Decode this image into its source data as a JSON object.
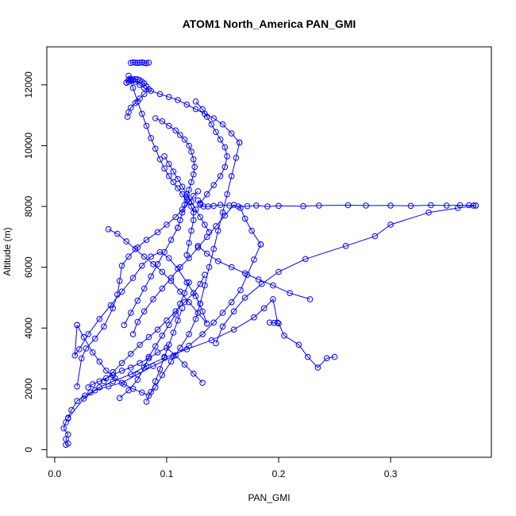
{
  "chart_data": {
    "type": "scatter",
    "title": "ATOM1 North_America PAN_GMI",
    "xlabel": "PAN_GMI",
    "ylabel": "Altitude (m)",
    "xlim": [
      -0.007,
      0.39
    ],
    "ylim": [
      -250,
      13250
    ],
    "x_ticks": [
      0.0,
      0.1,
      0.2,
      0.3
    ],
    "x_tick_labels": [
      "0.0",
      "0.1",
      "0.2",
      "0.3"
    ],
    "y_ticks": [
      0,
      2000,
      4000,
      6000,
      8000,
      10000,
      12000
    ],
    "y_tick_labels": [
      "0",
      "2000",
      "4000",
      "6000",
      "8000",
      "10000",
      "12000"
    ],
    "grid": false,
    "color": "#0000ff",
    "marker": "open-circle",
    "connected": true,
    "series": [
      {
        "x": [
          0.01,
          0.012,
          0.01,
          0.012,
          0.008,
          0.01,
          0.012,
          0.015,
          0.02,
          0.027,
          0.032,
          0.04,
          0.052,
          0.068,
          0.082,
          0.098,
          0.118,
          0.14,
          0.16,
          0.178,
          0.187,
          0.195,
          0.199
        ],
        "y": [
          160,
          200,
          350,
          500,
          700,
          900,
          1050,
          1300,
          1600,
          1780,
          1880,
          2050,
          2250,
          2480,
          2750,
          3020,
          3300,
          3600,
          3950,
          4350,
          4650,
          4950,
          4180
        ]
      },
      {
        "x": [
          0.192,
          0.196,
          0.2,
          0.205,
          0.218,
          0.226,
          0.235,
          0.243,
          0.25
        ],
        "y": [
          4180,
          4170,
          4150,
          3750,
          3450,
          3050,
          2700,
          3010,
          3050
        ]
      },
      {
        "x": [
          0.012,
          0.026,
          0.036,
          0.048,
          0.06,
          0.074,
          0.088,
          0.106,
          0.12,
          0.132,
          0.142,
          0.15,
          0.158,
          0.166,
          0.172,
          0.178,
          0.184
        ],
        "y": [
          1030,
          1680,
          1950,
          2080,
          2200,
          2480,
          2750,
          3080,
          3420,
          3800,
          4180,
          4500,
          4850,
          5250,
          5750,
          6250,
          6750
        ]
      },
      {
        "x": [
          0.184,
          0.176,
          0.17,
          0.166,
          0.16,
          0.152,
          0.144,
          0.136,
          0.128,
          0.12,
          0.112,
          0.104,
          0.096,
          0.088,
          0.08,
          0.074,
          0.07
        ],
        "y": [
          6750,
          7200,
          7600,
          7950,
          8050,
          7700,
          7350,
          7000,
          6650,
          6300,
          6000,
          5650,
          5300,
          4950,
          4550,
          4200,
          3800
        ]
      },
      {
        "x": [
          0.02,
          0.024,
          0.028,
          0.036,
          0.044,
          0.052,
          0.056,
          0.058,
          0.06,
          0.066,
          0.074,
          0.082,
          0.092,
          0.1,
          0.108,
          0.114,
          0.12,
          0.124,
          0.128
        ],
        "y": [
          2080,
          3000,
          3330,
          3650,
          4050,
          4650,
          5100,
          5550,
          6050,
          6350,
          6650,
          6900,
          7150,
          7400,
          7650,
          7900,
          8150,
          8350,
          8500
        ]
      },
      {
        "x": [
          0.128,
          0.13,
          0.133,
          0.137,
          0.142,
          0.148,
          0.156,
          0.164,
          0.172,
          0.18,
          0.19,
          0.2,
          0.222,
          0.236,
          0.262,
          0.278,
          0.3,
          0.318,
          0.336,
          0.35,
          0.362,
          0.37,
          0.374,
          0.376
        ],
        "y": [
          8200,
          8050,
          8000,
          8000,
          8020,
          8050,
          8030,
          8000,
          8010,
          8030,
          8000,
          8020,
          8010,
          8030,
          8040,
          8030,
          8030,
          8020,
          8040,
          8030,
          8040,
          8040,
          8030,
          8030
        ]
      },
      {
        "x": [
          0.376,
          0.36,
          0.334,
          0.3,
          0.286,
          0.26,
          0.224,
          0.2,
          0.185,
          0.17,
          0.16,
          0.15,
          0.144
        ],
        "y": [
          8030,
          7950,
          7800,
          7400,
          7020,
          6700,
          6270,
          5850,
          5450,
          5000,
          4550,
          4050,
          3500
        ]
      },
      {
        "x": [
          0.048,
          0.056,
          0.064,
          0.072,
          0.08,
          0.088,
          0.096,
          0.104,
          0.112,
          0.12,
          0.128,
          0.136
        ],
        "y": [
          7250,
          7100,
          6850,
          6600,
          6350,
          6100,
          5850,
          5550,
          5200,
          4850,
          4500,
          4150
        ]
      },
      {
        "x": [
          0.136,
          0.132,
          0.126,
          0.118,
          0.11,
          0.102,
          0.094,
          0.086,
          0.078,
          0.07,
          0.06,
          0.05,
          0.04,
          0.03,
          0.022,
          0.018,
          0.02
        ],
        "y": [
          4150,
          4550,
          5050,
          5500,
          5950,
          6300,
          6500,
          6350,
          6050,
          5650,
          5200,
          4750,
          4300,
          3800,
          3300,
          3100,
          4100
        ]
      },
      {
        "x": [
          0.02,
          0.026,
          0.034,
          0.04,
          0.046,
          0.054,
          0.062,
          0.07,
          0.078,
          0.084,
          0.09,
          0.096,
          0.104,
          0.112,
          0.12,
          0.126,
          0.13
        ],
        "y": [
          4100,
          3700,
          3200,
          2900,
          2600,
          2350,
          2150,
          2000,
          1880,
          1780,
          2050,
          2450,
          2900,
          3350,
          3800,
          4300,
          4800
        ]
      },
      {
        "x": [
          0.13,
          0.134,
          0.138,
          0.142,
          0.146,
          0.15,
          0.154,
          0.158,
          0.162,
          0.165
        ],
        "y": [
          4800,
          5400,
          6000,
          6600,
          7200,
          7800,
          8400,
          9000,
          9600,
          10100
        ]
      },
      {
        "x": [
          0.165,
          0.158,
          0.15,
          0.142,
          0.134,
          0.126,
          0.118,
          0.11,
          0.102,
          0.094,
          0.086,
          0.08,
          0.076,
          0.072,
          0.07,
          0.068,
          0.066,
          0.064
        ],
        "y": [
          10100,
          10400,
          10700,
          10900,
          11050,
          11200,
          11350,
          11500,
          11600,
          11700,
          11800,
          11900,
          12000,
          12100,
          12150,
          12200,
          12170,
          12070
        ]
      },
      {
        "x": [
          0.064,
          0.066,
          0.068,
          0.07,
          0.072,
          0.074,
          0.076,
          0.078,
          0.08,
          0.082,
          0.084,
          0.08,
          0.076,
          0.072,
          0.068,
          0.066,
          0.065
        ],
        "y": [
          12070,
          12100,
          12150,
          12170,
          12190,
          12180,
          12150,
          12100,
          12050,
          11950,
          11850,
          11700,
          11550,
          11400,
          11250,
          11100,
          10950
        ]
      },
      {
        "x": [
          0.068,
          0.07,
          0.072,
          0.074,
          0.076,
          0.078,
          0.08,
          0.082,
          0.084
        ],
        "y": [
          12720,
          12740,
          12730,
          12720,
          12730,
          12740,
          12720,
          12710,
          12730
        ]
      },
      {
        "x": [
          0.066,
          0.07,
          0.074,
          0.078,
          0.082,
          0.086,
          0.09,
          0.094,
          0.098,
          0.102,
          0.106,
          0.11,
          0.114,
          0.118,
          0.122,
          0.124,
          0.124,
          0.122,
          0.12,
          0.118
        ],
        "y": [
          12300,
          11900,
          11450,
          11050,
          10650,
          10250,
          9900,
          9550,
          9250,
          9000,
          8800,
          8600,
          8400,
          8200,
          8000,
          7800,
          7550,
          7200,
          6800,
          6400
        ]
      },
      {
        "x": [
          0.09,
          0.096,
          0.102,
          0.108,
          0.112,
          0.116,
          0.12,
          0.122,
          0.124,
          0.125,
          0.124,
          0.122,
          0.12,
          0.118,
          0.116,
          0.114,
          0.112,
          0.11
        ],
        "y": [
          10900,
          10800,
          10650,
          10500,
          10350,
          10200,
          10000,
          9800,
          9550,
          9300,
          9050,
          8800,
          8550,
          8300,
          8050,
          7800,
          7550,
          7300
        ]
      },
      {
        "x": [
          0.11,
          0.104,
          0.098,
          0.092,
          0.086,
          0.08,
          0.074,
          0.068,
          0.062
        ],
        "y": [
          7300,
          6900,
          6500,
          6100,
          5700,
          5300,
          4900,
          4500,
          4100
        ]
      },
      {
        "x": [
          0.098,
          0.102,
          0.106,
          0.11,
          0.114,
          0.118,
          0.122,
          0.126,
          0.13,
          0.134,
          0.138
        ],
        "y": [
          9650,
          9400,
          9150,
          8900,
          8650,
          8400,
          8150,
          7900,
          7650,
          7400,
          7150
        ]
      },
      {
        "x": [
          0.126,
          0.132,
          0.136,
          0.14,
          0.144,
          0.148,
          0.152,
          0.154,
          0.152,
          0.148,
          0.142,
          0.136,
          0.13
        ],
        "y": [
          11450,
          11200,
          10950,
          10700,
          10450,
          10200,
          9950,
          9650,
          9300,
          9000,
          8700,
          8400,
          8100
        ]
      },
      {
        "x": [
          0.044,
          0.052,
          0.06,
          0.068,
          0.076,
          0.084,
          0.092,
          0.1,
          0.108,
          0.116,
          0.124,
          0.13,
          0.134
        ],
        "y": [
          2250,
          2550,
          2850,
          3150,
          3450,
          3700,
          3950,
          4250,
          4550,
          4850,
          5150,
          5450,
          5750
        ]
      },
      {
        "x": [
          0.132,
          0.124,
          0.116,
          0.108,
          0.1,
          0.092,
          0.084,
          0.076,
          0.068,
          0.06,
          0.052,
          0.046,
          0.04,
          0.034,
          0.03
        ],
        "y": [
          2200,
          2500,
          2800,
          3100,
          3350,
          3200,
          3000,
          2850,
          2700,
          2600,
          2450,
          2350,
          2250,
          2150,
          2050
        ]
      },
      {
        "x": [
          0.058,
          0.066,
          0.074,
          0.08,
          0.084,
          0.09,
          0.096,
          0.102,
          0.108,
          0.112,
          0.116,
          0.12
        ],
        "y": [
          1700,
          1950,
          2300,
          2700,
          3050,
          3400,
          3750,
          4100,
          4450,
          4800,
          5150,
          5500
        ]
      },
      {
        "x": [
          0.082,
          0.086,
          0.09,
          0.094,
          0.098,
          0.102,
          0.106,
          0.11,
          0.114
        ],
        "y": [
          1580,
          1900,
          2250,
          2650,
          3050,
          3450,
          3850,
          4250,
          4650
        ]
      },
      {
        "x": [
          0.228,
          0.21,
          0.195,
          0.182,
          0.17,
          0.158,
          0.146,
          0.136,
          0.128
        ],
        "y": [
          4950,
          5150,
          5400,
          5600,
          5800,
          6000,
          6200,
          6450,
          6700
        ]
      }
    ]
  }
}
